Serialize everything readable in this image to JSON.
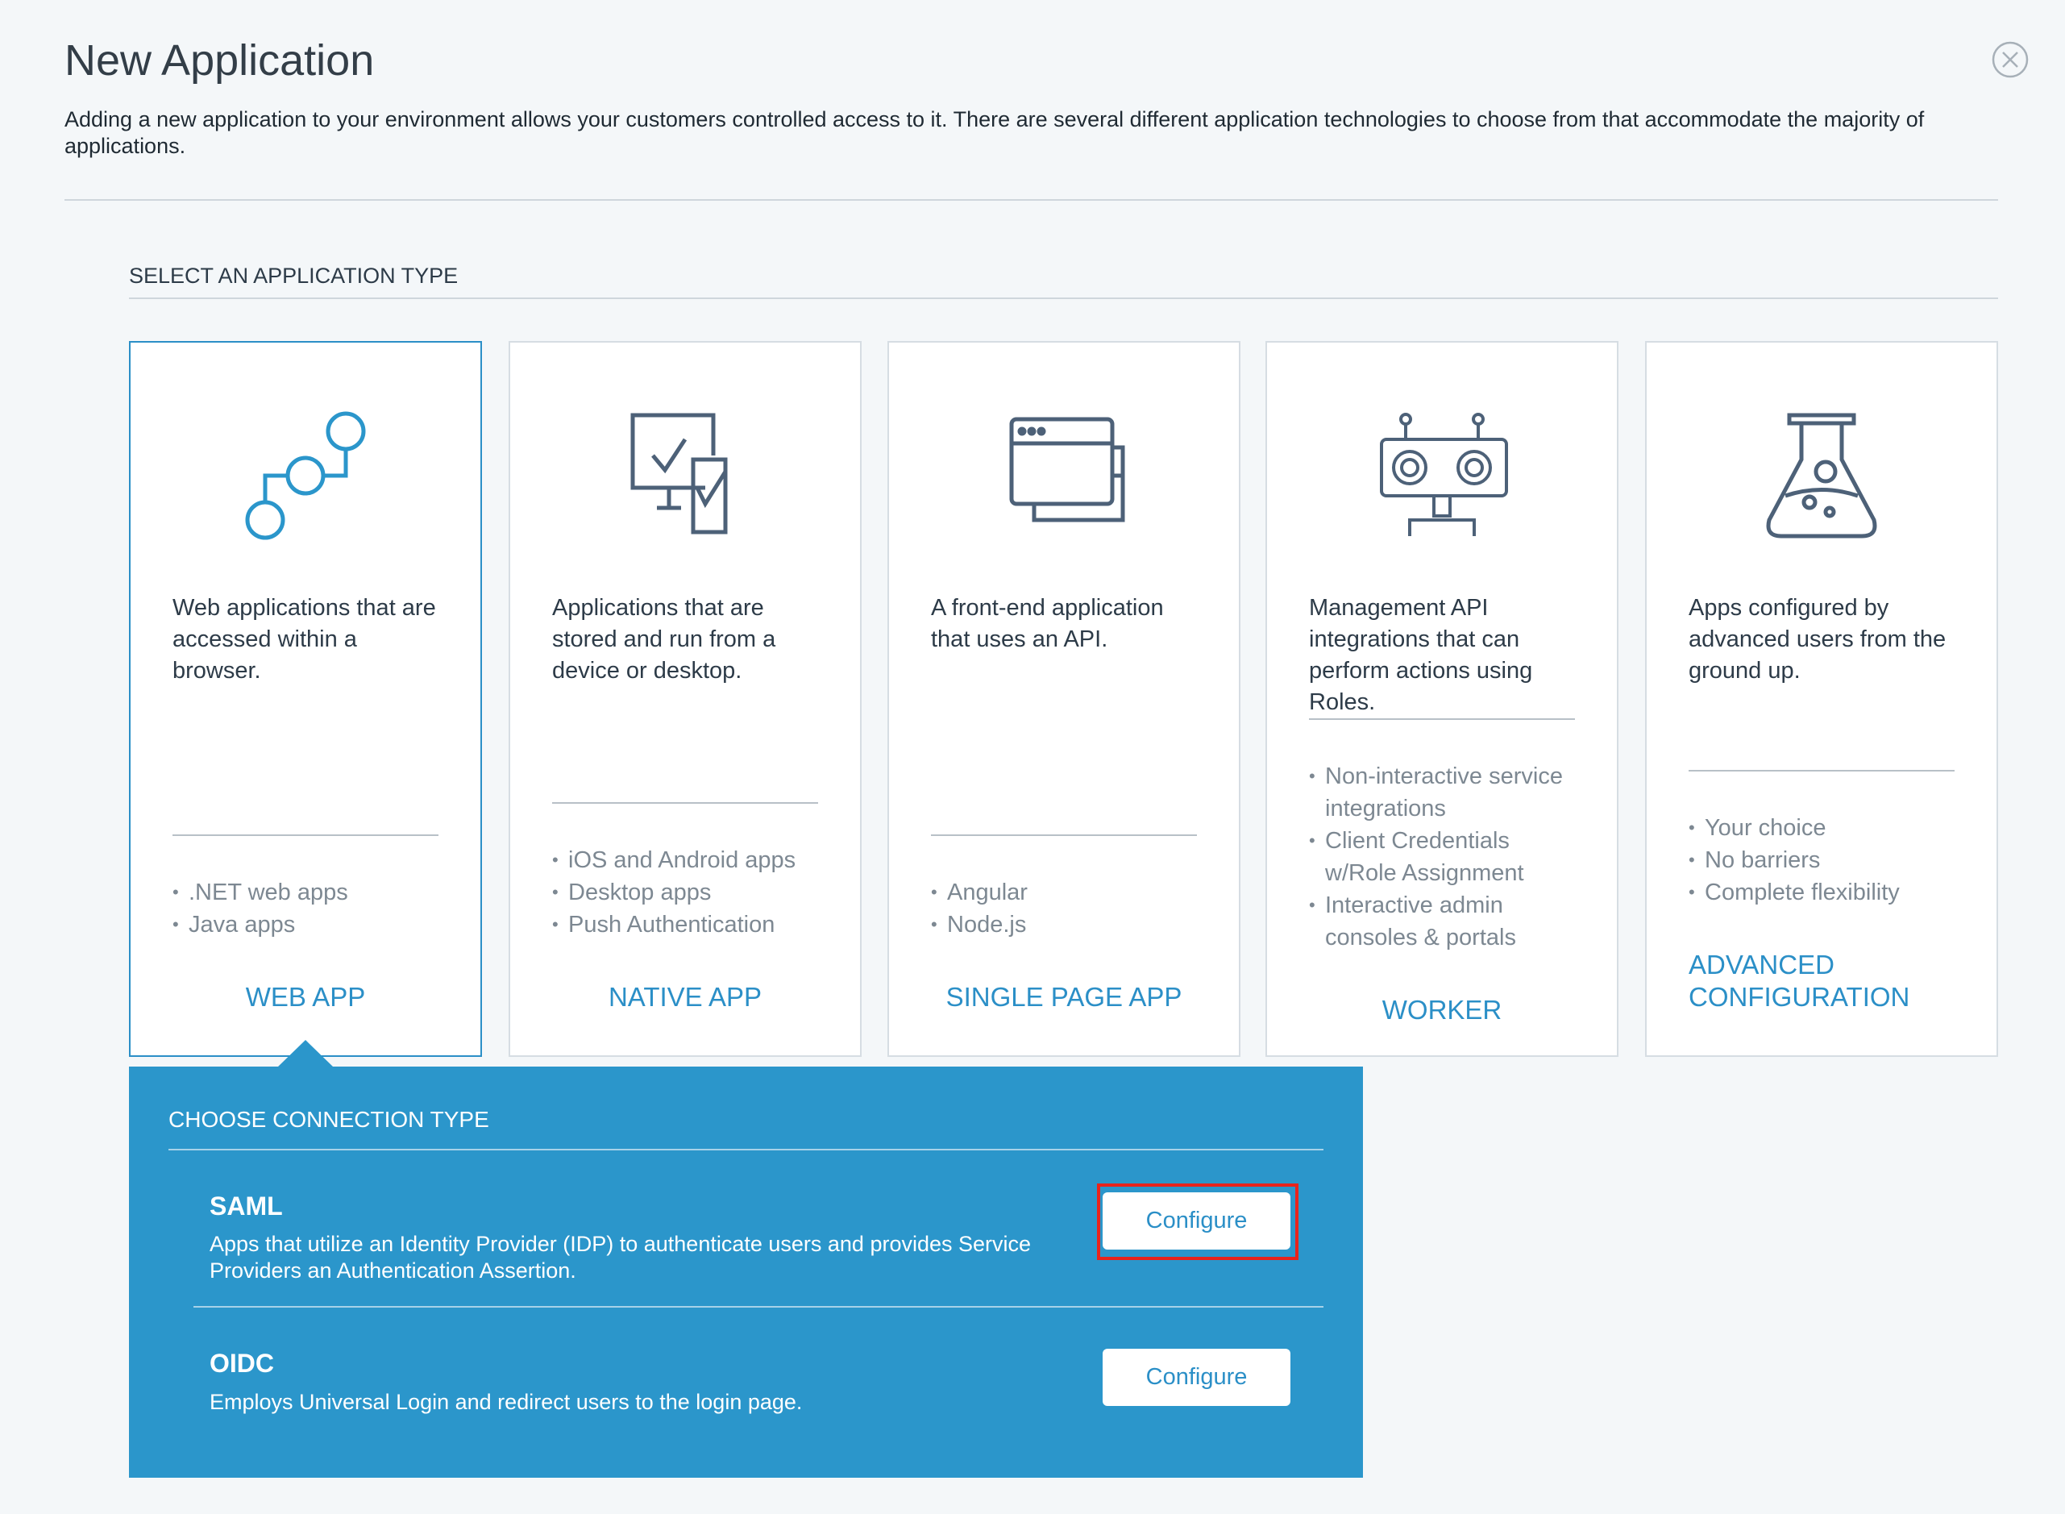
{
  "header": {
    "title": "New Application",
    "description": "Adding a new application to your environment allows your customers controlled access to it. There are several different application technologies to choose from that accommodate the majority of applications.",
    "close_icon": "close-circle-icon"
  },
  "section_title": "SELECT AN APPLICATION TYPE",
  "cards": [
    {
      "icon": "nodes-icon",
      "description": "Web applications that are accessed within a browser.",
      "bullets": [
        ".NET web apps",
        "Java apps"
      ],
      "label": "WEB APP",
      "selected": true
    },
    {
      "icon": "devices-check-icon",
      "description": "Applications that are stored and run from a device or desktop.",
      "bullets": [
        "iOS and Android apps",
        "Desktop apps",
        "Push Authentication"
      ],
      "label": "NATIVE APP"
    },
    {
      "icon": "browser-windows-icon",
      "description": "A front-end application that uses an API.",
      "bullets": [
        "Angular",
        "Node.js"
      ],
      "label": "SINGLE PAGE APP"
    },
    {
      "icon": "robot-icon",
      "description": "Management API integrations that can perform actions using Roles.",
      "bullets": [
        "Non-interactive service integrations",
        "Client Credentials w/Role Assignment",
        "Interactive admin consoles & portals"
      ],
      "label": "WORKER"
    },
    {
      "icon": "flask-icon",
      "description": "Apps configured by advanced users from the ground up.",
      "bullets": [
        "Your choice",
        "No barriers",
        "Complete flexibility"
      ],
      "label": "ADVANCED CONFIGURATION"
    }
  ],
  "connection": {
    "title": "CHOOSE CONNECTION TYPE",
    "options": [
      {
        "name": "SAML",
        "description": "Apps that utilize an Identity Provider (IDP) to authenticate users and provides Service Providers an Authentication Assertion.",
        "button": "Configure",
        "highlighted": true
      },
      {
        "name": "OIDC",
        "description": "Employs Universal Login and redirect users to the login page.",
        "button": "Configure"
      }
    ]
  },
  "colors": {
    "accent": "#2b8fc7",
    "panel": "#2b96cb",
    "highlight": "#e8231c",
    "icon": "#4d6178"
  }
}
